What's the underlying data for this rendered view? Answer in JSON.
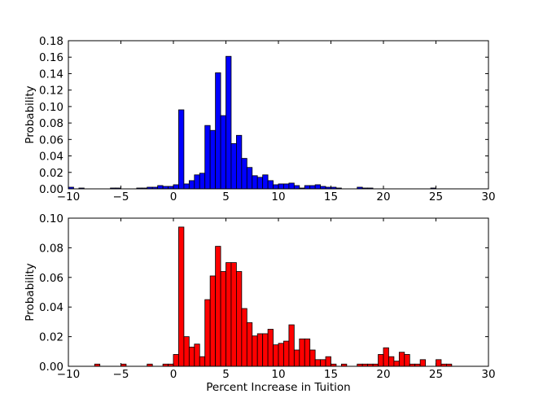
{
  "chart_data": [
    {
      "type": "bar",
      "xlim": [
        -10,
        30
      ],
      "ylim": [
        0,
        0.18
      ],
      "xticks": [
        "−10",
        "−5",
        "0",
        "5",
        "10",
        "15",
        "20",
        "25",
        "30"
      ],
      "yticks": [
        "0.00",
        "0.02",
        "0.04",
        "0.06",
        "0.08",
        "0.10",
        "0.12",
        "0.14",
        "0.16",
        "0.18"
      ],
      "xlabel": "",
      "ylabel": "Probability",
      "bin_width": 0.5,
      "color": "#0000ff",
      "bars": [
        {
          "x": -10.0,
          "y": 0.002
        },
        {
          "x": -9.0,
          "y": 0.001
        },
        {
          "x": -6.0,
          "y": 0.001
        },
        {
          "x": -5.5,
          "y": 0.001
        },
        {
          "x": -3.5,
          "y": 0.001
        },
        {
          "x": -3.0,
          "y": 0.001
        },
        {
          "x": -2.5,
          "y": 0.002
        },
        {
          "x": -2.0,
          "y": 0.002
        },
        {
          "x": -1.5,
          "y": 0.004
        },
        {
          "x": -1.0,
          "y": 0.003
        },
        {
          "x": -0.5,
          "y": 0.003
        },
        {
          "x": 0.0,
          "y": 0.005
        },
        {
          "x": 0.5,
          "y": 0.096
        },
        {
          "x": 1.0,
          "y": 0.006
        },
        {
          "x": 1.5,
          "y": 0.01
        },
        {
          "x": 2.0,
          "y": 0.017
        },
        {
          "x": 2.5,
          "y": 0.019
        },
        {
          "x": 3.0,
          "y": 0.077
        },
        {
          "x": 3.5,
          "y": 0.071
        },
        {
          "x": 4.0,
          "y": 0.141
        },
        {
          "x": 4.5,
          "y": 0.089
        },
        {
          "x": 5.0,
          "y": 0.161
        },
        {
          "x": 5.5,
          "y": 0.055
        },
        {
          "x": 6.0,
          "y": 0.065
        },
        {
          "x": 6.5,
          "y": 0.037
        },
        {
          "x": 7.0,
          "y": 0.026
        },
        {
          "x": 7.5,
          "y": 0.016
        },
        {
          "x": 8.0,
          "y": 0.014
        },
        {
          "x": 8.5,
          "y": 0.017
        },
        {
          "x": 9.0,
          "y": 0.01
        },
        {
          "x": 9.5,
          "y": 0.005
        },
        {
          "x": 10.0,
          "y": 0.006
        },
        {
          "x": 10.5,
          "y": 0.006
        },
        {
          "x": 11.0,
          "y": 0.007
        },
        {
          "x": 11.5,
          "y": 0.004
        },
        {
          "x": 12.0,
          "y": 0.001
        },
        {
          "x": 12.5,
          "y": 0.004
        },
        {
          "x": 13.0,
          "y": 0.004
        },
        {
          "x": 13.5,
          "y": 0.005
        },
        {
          "x": 14.0,
          "y": 0.003
        },
        {
          "x": 14.5,
          "y": 0.002
        },
        {
          "x": 15.0,
          "y": 0.002
        },
        {
          "x": 15.5,
          "y": 0.001
        },
        {
          "x": 17.5,
          "y": 0.002
        },
        {
          "x": 18.0,
          "y": 0.001
        },
        {
          "x": 18.5,
          "y": 0.001
        },
        {
          "x": 24.5,
          "y": 0.001
        }
      ]
    },
    {
      "type": "bar",
      "xlim": [
        -10,
        30
      ],
      "ylim": [
        0,
        0.1
      ],
      "xticks": [
        "−10",
        "−5",
        "0",
        "5",
        "10",
        "15",
        "20",
        "25",
        "30"
      ],
      "yticks": [
        "0.00",
        "0.02",
        "0.04",
        "0.06",
        "0.08",
        "0.10"
      ],
      "xlabel": "Percent Increase in Tuition",
      "ylabel": "Probability",
      "bin_width": 0.5,
      "color": "#ff0000",
      "bars": [
        {
          "x": -7.5,
          "y": 0.0015
        },
        {
          "x": -5.0,
          "y": 0.0015
        },
        {
          "x": -2.5,
          "y": 0.0015
        },
        {
          "x": -1.0,
          "y": 0.0015
        },
        {
          "x": -0.5,
          "y": 0.0015
        },
        {
          "x": 0.0,
          "y": 0.008
        },
        {
          "x": 0.5,
          "y": 0.094
        },
        {
          "x": 1.0,
          "y": 0.02
        },
        {
          "x": 1.5,
          "y": 0.013
        },
        {
          "x": 2.0,
          "y": 0.015
        },
        {
          "x": 2.5,
          "y": 0.0065
        },
        {
          "x": 3.0,
          "y": 0.045
        },
        {
          "x": 3.5,
          "y": 0.061
        },
        {
          "x": 4.0,
          "y": 0.081
        },
        {
          "x": 4.5,
          "y": 0.064
        },
        {
          "x": 5.0,
          "y": 0.07
        },
        {
          "x": 5.5,
          "y": 0.07
        },
        {
          "x": 6.0,
          "y": 0.064
        },
        {
          "x": 6.5,
          "y": 0.039
        },
        {
          "x": 7.0,
          "y": 0.0295
        },
        {
          "x": 7.5,
          "y": 0.0205
        },
        {
          "x": 8.0,
          "y": 0.022
        },
        {
          "x": 8.5,
          "y": 0.022
        },
        {
          "x": 9.0,
          "y": 0.025
        },
        {
          "x": 9.5,
          "y": 0.0145
        },
        {
          "x": 10.0,
          "y": 0.0155
        },
        {
          "x": 10.5,
          "y": 0.017
        },
        {
          "x": 11.0,
          "y": 0.028
        },
        {
          "x": 11.5,
          "y": 0.011
        },
        {
          "x": 12.0,
          "y": 0.0185
        },
        {
          "x": 12.5,
          "y": 0.0185
        },
        {
          "x": 13.0,
          "y": 0.011
        },
        {
          "x": 13.5,
          "y": 0.0045
        },
        {
          "x": 14.0,
          "y": 0.0045
        },
        {
          "x": 14.5,
          "y": 0.0065
        },
        {
          "x": 15.0,
          "y": 0.0015
        },
        {
          "x": 16.0,
          "y": 0.0015
        },
        {
          "x": 17.5,
          "y": 0.0015
        },
        {
          "x": 18.0,
          "y": 0.0015
        },
        {
          "x": 18.5,
          "y": 0.0015
        },
        {
          "x": 19.0,
          "y": 0.0015
        },
        {
          "x": 19.5,
          "y": 0.008
        },
        {
          "x": 20.0,
          "y": 0.0125
        },
        {
          "x": 20.5,
          "y": 0.0065
        },
        {
          "x": 21.0,
          "y": 0.0035
        },
        {
          "x": 21.5,
          "y": 0.0095
        },
        {
          "x": 22.0,
          "y": 0.008
        },
        {
          "x": 22.5,
          "y": 0.0015
        },
        {
          "x": 23.0,
          "y": 0.0015
        },
        {
          "x": 23.5,
          "y": 0.0045
        },
        {
          "x": 25.0,
          "y": 0.0045
        },
        {
          "x": 25.5,
          "y": 0.0015
        },
        {
          "x": 26.0,
          "y": 0.0015
        }
      ]
    }
  ]
}
